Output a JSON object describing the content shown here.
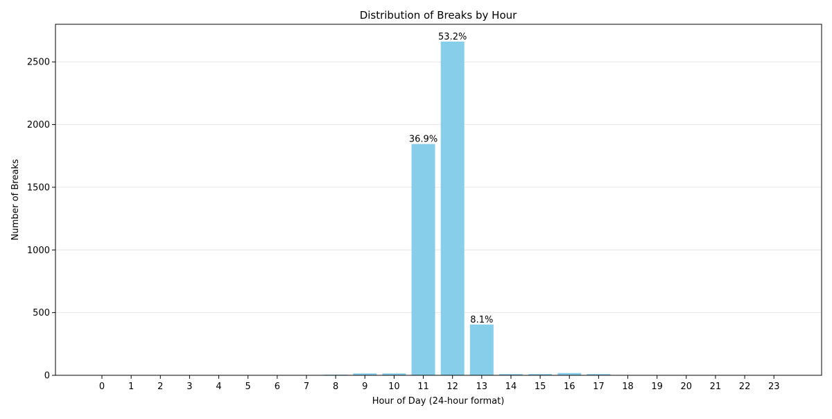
{
  "chart_data": {
    "type": "bar",
    "title": "Distribution of Breaks by Hour",
    "xlabel": "Hour of Day (24-hour format)",
    "ylabel": "Number of Breaks",
    "categories": [
      "0",
      "1",
      "2",
      "3",
      "4",
      "5",
      "6",
      "7",
      "8",
      "9",
      "10",
      "11",
      "12",
      "13",
      "14",
      "15",
      "16",
      "17",
      "18",
      "19",
      "20",
      "21",
      "22",
      "23"
    ],
    "values": [
      0,
      0,
      0,
      0,
      0,
      0,
      0,
      0,
      5,
      15,
      15,
      1845,
      2662,
      405,
      10,
      10,
      18,
      10,
      0,
      0,
      0,
      0,
      0,
      0
    ],
    "bar_labels": [
      "",
      "",
      "",
      "",
      "",
      "",
      "",
      "",
      "",
      "",
      "",
      "36.9%",
      "53.2%",
      "8.1%",
      "",
      "",
      "",
      "",
      "",
      "",
      "",
      "",
      "",
      ""
    ],
    "ylim": [
      0,
      2800
    ],
    "yticks": [
      0,
      500,
      1000,
      1500,
      2000,
      2500
    ],
    "ytick_labels": [
      "0",
      "500",
      "1000",
      "1500",
      "2000",
      "2500"
    ],
    "grid": "y",
    "bar_color": "#87ceeb"
  }
}
